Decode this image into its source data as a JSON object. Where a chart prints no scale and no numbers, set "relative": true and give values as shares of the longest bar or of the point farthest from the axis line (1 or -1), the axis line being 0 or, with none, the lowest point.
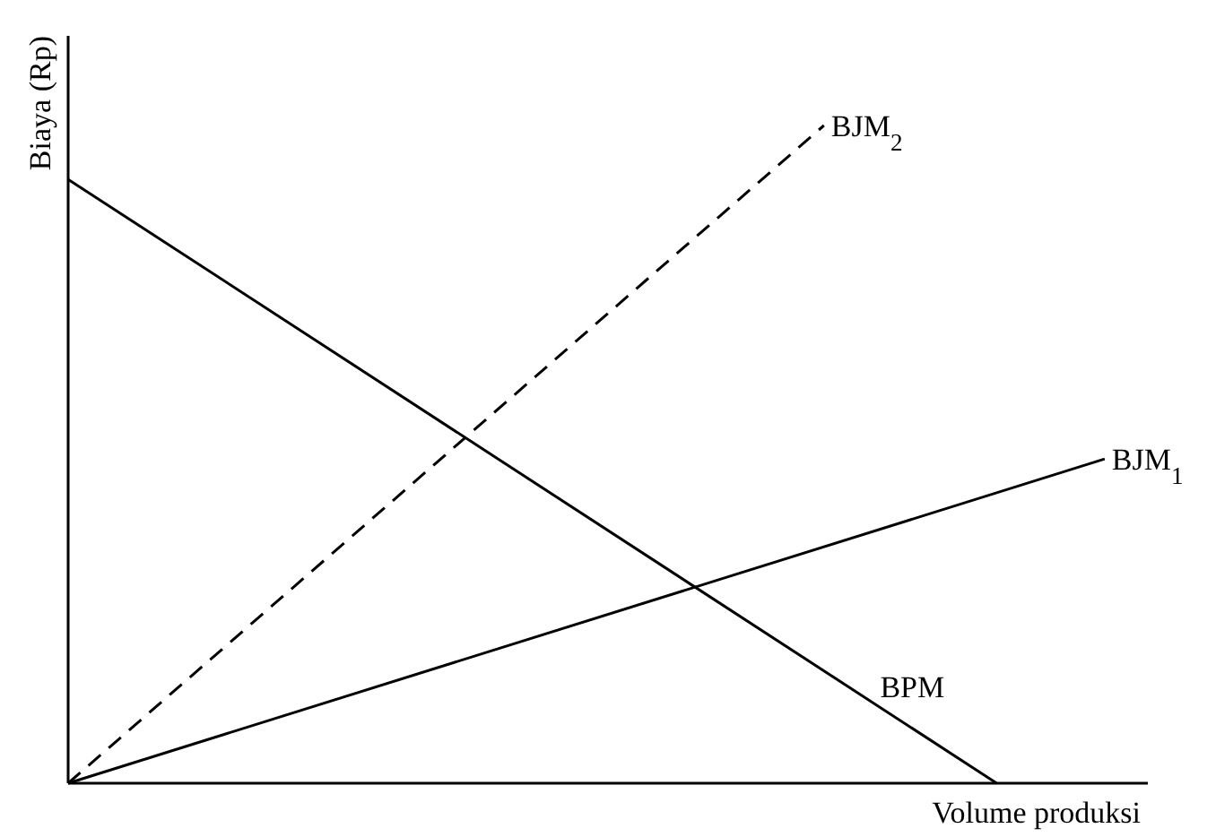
{
  "chart_data": {
    "type": "line",
    "relative": true,
    "xlabel": "Volume produksi",
    "ylabel": "Biaya (Rp)",
    "marker": "none",
    "categories": [
      null,
      null,
      null,
      null,
      null,
      null,
      null,
      null,
      null,
      null,
      null,
      null,
      null,
      null,
      null,
      null,
      null,
      null,
      null,
      null,
      null,
      null,
      null,
      null,
      null,
      null,
      null,
      null,
      null,
      null,
      null,
      null,
      null,
      null,
      null,
      null,
      null,
      null,
      null,
      null,
      null,
      null,
      null,
      null,
      null,
      null,
      null,
      null,
      null,
      null,
      null
    ],
    "series": [
      {
        "name": "BJM$_{2}$",
        "color": "#000000",
        "line_style": "dashed",
        "values": [
          0,
          null,
          null,
          null,
          null,
          null,
          null,
          null,
          null,
          null,
          null,
          null,
          null,
          null,
          null,
          null,
          null,
          null,
          null,
          null,
          null,
          null,
          null,
          null,
          null,
          null,
          null,
          null,
          null,
          null,
          null,
          null,
          null,
          null,
          null,
          1,
          null,
          null,
          null,
          null,
          null,
          null,
          null,
          null,
          null,
          null,
          null,
          null,
          null,
          null,
          null
        ]
      },
      {
        "name": "BJM$_{1}$",
        "color": "#000000",
        "line_style": "solid",
        "values": [
          0,
          null,
          null,
          null,
          null,
          null,
          null,
          null,
          null,
          null,
          null,
          null,
          null,
          null,
          null,
          null,
          null,
          null,
          null,
          null,
          null,
          null,
          null,
          null,
          null,
          null,
          null,
          null,
          null,
          null,
          null,
          null,
          null,
          null,
          null,
          null,
          null,
          null,
          null,
          null,
          null,
          null,
          null,
          null,
          null,
          null,
          null,
          null,
          0.493,
          null,
          null
        ]
      },
      {
        "name": "BPM",
        "color": "#000000",
        "line_style": "solid",
        "values": [
          0.918,
          null,
          null,
          null,
          null,
          null,
          null,
          null,
          null,
          null,
          null,
          null,
          null,
          null,
          null,
          null,
          null,
          null,
          null,
          null,
          null,
          null,
          null,
          null,
          null,
          null,
          null,
          null,
          null,
          null,
          null,
          null,
          null,
          null,
          null,
          null,
          null,
          null,
          null,
          null,
          null,
          null,
          null,
          0,
          null,
          null,
          null,
          null,
          null,
          null,
          null
        ]
      }
    ]
  }
}
